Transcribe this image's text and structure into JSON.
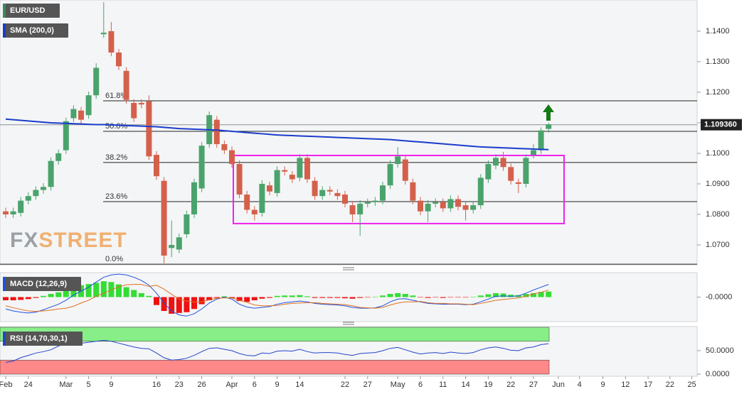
{
  "chart_data": [
    {
      "type": "candlestick",
      "title": "EUR/USD",
      "watermark": [
        "FX",
        "STREET"
      ],
      "up_color": "#4aa36c",
      "down_color": "#d4604c",
      "open": [
        1.081,
        1.08,
        1.0805,
        1.0845,
        1.086,
        1.088,
        1.089,
        1.0975,
        1.101,
        1.1115,
        1.114,
        1.1125,
        1.119,
        1.139,
        1.14,
        1.133,
        1.127,
        1.1165,
        1.1165,
        1.117,
        1.0995,
        1.091,
        1.069,
        1.0685,
        1.0735,
        1.08,
        1.0885,
        1.103,
        1.111,
        1.103,
        1.101,
        1.0965,
        1.0865,
        1.0815,
        1.0805,
        1.0895,
        1.087,
        1.0945,
        1.093,
        1.092,
        1.0985,
        1.091,
        1.086,
        1.088,
        1.087,
        1.0865,
        1.083,
        1.08,
        1.0835,
        1.084,
        1.0845,
        1.0895,
        1.0965,
        1.098,
        1.0905,
        1.0845,
        1.081,
        1.0835,
        1.084,
        1.082,
        1.085,
        1.083,
        1.0815,
        1.083,
        1.0915,
        1.096,
        1.0985,
        1.0955,
        1.0905,
        1.09,
        1.0995,
        1.101,
        1.108
      ],
      "high": [
        1.0822,
        1.0822,
        1.0857,
        1.0872,
        1.0892,
        1.0902,
        1.0987,
        1.1012,
        1.1117,
        1.1157,
        1.1152,
        1.1202,
        1.1295,
        1.1495,
        1.143,
        1.1342,
        1.1282,
        1.1177,
        1.1177,
        1.119,
        1.1007,
        1.0922,
        1.078,
        1.0737,
        1.0812,
        1.0917,
        1.1037,
        1.1137,
        1.1122,
        1.1042,
        1.1022,
        1.0977,
        1.0877,
        1.0827,
        1.0912,
        1.0907,
        1.0957,
        1.0957,
        1.0942,
        1.0997,
        1.0997,
        1.0922,
        1.0892,
        1.0892,
        1.0882,
        1.0877,
        1.0842,
        1.0847,
        1.0852,
        1.0857,
        1.0907,
        1.0977,
        1.102,
        1.0992,
        1.0917,
        1.0857,
        1.0847,
        1.0852,
        1.0852,
        1.0862,
        1.0862,
        1.0842,
        1.0842,
        1.0932,
        1.0977,
        1.0997,
        1.1005,
        1.0967,
        1.0917,
        1.0997,
        1.103,
        1.1085,
        1.11
      ],
      "low": [
        1.0788,
        1.0788,
        1.0793,
        1.0833,
        1.0848,
        1.0868,
        1.0878,
        1.0963,
        1.0998,
        1.1103,
        1.1098,
        1.1113,
        1.1178,
        1.1378,
        1.1318,
        1.1273,
        1.1163,
        1.1103,
        1.1148,
        1.0978,
        1.0913,
        1.064,
        1.066,
        1.0673,
        1.0723,
        1.0788,
        1.0873,
        1.1018,
        1.1018,
        1.0998,
        1.0953,
        1.0853,
        1.0803,
        1.078,
        1.0793,
        1.0863,
        1.0858,
        1.0928,
        1.0903,
        1.0908,
        1.0903,
        1.0848,
        1.0848,
        1.0863,
        1.0848,
        1.0823,
        1.0775,
        1.073,
        1.0823,
        1.0828,
        1.0833,
        1.0883,
        1.0953,
        1.0898,
        1.0833,
        1.0798,
        1.0775,
        1.0823,
        1.0808,
        1.0808,
        1.0813,
        1.078,
        1.0803,
        1.0818,
        1.0903,
        1.0948,
        1.0943,
        1.0898,
        1.087,
        1.0888,
        1.0983,
        1.0998,
        1.1068
      ],
      "close": [
        1.08,
        1.081,
        1.0845,
        1.086,
        1.088,
        1.089,
        1.0975,
        1.1,
        1.1105,
        1.1145,
        1.111,
        1.119,
        1.128,
        1.1395,
        1.133,
        1.1285,
        1.1175,
        1.1115,
        1.116,
        1.099,
        1.0925,
        1.0665,
        1.07,
        1.0725,
        1.08,
        1.0905,
        1.1025,
        1.1125,
        1.103,
        1.101,
        1.0965,
        1.0865,
        1.0815,
        1.08,
        1.09,
        1.0875,
        1.0945,
        1.094,
        1.0915,
        1.0985,
        1.0915,
        1.086,
        1.088,
        1.0875,
        1.086,
        1.0835,
        1.08,
        1.0835,
        1.084,
        1.0845,
        1.0895,
        1.0965,
        1.099,
        1.091,
        1.0845,
        1.081,
        1.0835,
        1.084,
        1.082,
        1.085,
        1.0825,
        1.0815,
        1.083,
        1.092,
        1.0965,
        1.0985,
        1.0955,
        1.091,
        1.09,
        1.0985,
        1.101,
        1.1075,
        1.1095
      ],
      "series": [
        {
          "name": "SMA (200,0)",
          "color": "#1a3ccc",
          "values": [
            1.1112,
            1.111,
            1.1108,
            1.1106,
            1.1104,
            1.1102,
            1.11,
            1.1099,
            1.1098,
            1.1097,
            1.1096,
            1.1095,
            1.1094,
            1.1094,
            1.1093,
            1.1092,
            1.1091,
            1.109,
            1.1089,
            1.1088,
            1.1087,
            1.1085,
            1.1083,
            1.1081,
            1.108,
            1.1079,
            1.1078,
            1.1077,
            1.1076,
            1.1074,
            1.1072,
            1.107,
            1.1068,
            1.1066,
            1.1064,
            1.1062,
            1.106,
            1.1059,
            1.1058,
            1.1057,
            1.1056,
            1.1055,
            1.1054,
            1.1053,
            1.1052,
            1.1051,
            1.105,
            1.1049,
            1.1048,
            1.1047,
            1.1046,
            1.1045,
            1.1043,
            1.1041,
            1.1039,
            1.1037,
            1.1035,
            1.1033,
            1.1031,
            1.1029,
            1.1027,
            1.1025,
            1.1023,
            1.1021,
            1.102,
            1.1019,
            1.1018,
            1.1017,
            1.1016,
            1.1015,
            1.1014,
            1.1013,
            1.1012
          ]
        }
      ],
      "fib_levels": [
        {
          "label": "61.8%",
          "value": 1.1172
        },
        {
          "label": "50.0%",
          "value": 1.1072
        },
        {
          "label": "38.2%",
          "value": 1.097
        },
        {
          "label": "23.6%",
          "value": 1.0842
        },
        {
          "label": "0.0%",
          "value": 1.0637
        }
      ],
      "last_price": {
        "value": 1.10936,
        "label": "1.109360"
      },
      "range_box": [
        1.077,
        1.0993
      ],
      "range_box_color": "#ee22ee",
      "ylim": [
        1.0635,
        1.1502
      ],
      "yticks": [
        {
          "value": 1.14,
          "label": "1.1400"
        },
        {
          "value": 1.13,
          "label": "1.1300"
        },
        {
          "value": 1.12,
          "label": "1.1200"
        },
        {
          "value": 1.11,
          "label": "1.1100"
        },
        {
          "value": 1.1,
          "label": "1.1000"
        },
        {
          "value": 1.09,
          "label": "1.0900"
        },
        {
          "value": 1.08,
          "label": "1.0800"
        },
        {
          "value": 1.07,
          "label": "1.0700"
        }
      ],
      "xticks": [
        {
          "value": 0,
          "label": "Feb"
        },
        {
          "value": 3,
          "label": "24"
        },
        {
          "value": 8,
          "label": "Mar"
        },
        {
          "value": 11,
          "label": "5"
        },
        {
          "value": 14,
          "label": "9"
        },
        {
          "value": 20,
          "label": "16"
        },
        {
          "value": 23,
          "label": "23"
        },
        {
          "value": 26,
          "label": "26"
        },
        {
          "value": 30,
          "label": "Apr"
        },
        {
          "value": 33,
          "label": "6"
        },
        {
          "value": 36,
          "label": "9"
        },
        {
          "value": 39,
          "label": "14"
        },
        {
          "value": 45,
          "label": "22"
        },
        {
          "value": 48,
          "label": "27"
        },
        {
          "value": 52,
          "label": "May"
        },
        {
          "value": 55,
          "label": "6"
        },
        {
          "value": 58,
          "label": "11"
        },
        {
          "value": 61,
          "label": "14"
        },
        {
          "value": 64,
          "label": "19"
        },
        {
          "value": 67,
          "label": "22"
        },
        {
          "value": 70,
          "label": "27"
        },
        {
          "value": 73.3,
          "label": "Jun"
        },
        {
          "value": 76.1,
          "label": "4"
        },
        {
          "value": 79.2,
          "label": "9"
        },
        {
          "value": 82.2,
          "label": "12"
        },
        {
          "value": 85.2,
          "label": "17"
        },
        {
          "value": 88.1,
          "label": "22"
        },
        {
          "value": 91,
          "label": "25"
        }
      ]
    },
    {
      "type": "macd",
      "title": "MACD (12,26,9)",
      "up_color": "#33dd33",
      "down_color": "#ee1111",
      "histogram": [
        -0.0008,
        -0.0008,
        -0.0007,
        -0.0005,
        -0.0002,
        0.0003,
        0.0008,
        0.0012,
        0.002,
        0.0028,
        0.003,
        0.0033,
        0.0036,
        0.004,
        0.0038,
        0.0032,
        0.0025,
        0.0018,
        0.001,
        0.0003,
        -0.002,
        -0.0035,
        -0.0042,
        -0.004,
        -0.0038,
        -0.003,
        -0.0018,
        -0.0008,
        -0.0002,
        0.0002,
        -0.0003,
        -0.001,
        -0.0012,
        -0.0008,
        -0.0004,
        -0.0002,
        0.0003,
        0.0004,
        0.0004,
        0.0005,
        0.0002,
        -0.0002,
        -0.0002,
        -0.0002,
        -0.0002,
        -0.0003,
        -0.0004,
        -0.0002,
        -0.0001,
        0.0001,
        0.0004,
        0.0008,
        0.001,
        0.0008,
        0.0004,
        -0.0001,
        -0.0002,
        -0.0001,
        -0.0002,
        -0.0001,
        -0.0001,
        -0.0001,
        0.0001,
        0.0004,
        0.0007,
        0.001,
        0.0009,
        0.0006,
        0.0005,
        0.0008,
        0.001,
        0.0013,
        0.0014
      ],
      "macd": {
        "color": "#2050e0",
        "values": [
          -0.003,
          -0.0035,
          -0.0038,
          -0.004,
          -0.0038,
          -0.0032,
          -0.0025,
          -0.0018,
          -0.0008,
          0.0005,
          0.0015,
          0.0025,
          0.0038,
          0.005,
          0.0056,
          0.0058,
          0.0056,
          0.005,
          0.0042,
          0.003,
          0.001,
          -0.0015,
          -0.0035,
          -0.0045,
          -0.0048,
          -0.0042,
          -0.003,
          -0.0015,
          -0.0005,
          0.0,
          -0.0005,
          -0.0018,
          -0.0025,
          -0.0028,
          -0.0026,
          -0.0024,
          -0.0018,
          -0.0014,
          -0.0012,
          -0.001,
          -0.0012,
          -0.0016,
          -0.0018,
          -0.0019,
          -0.002,
          -0.0022,
          -0.0026,
          -0.0028,
          -0.0028,
          -0.0027,
          -0.0022,
          -0.0012,
          -0.0005,
          -0.0004,
          -0.0008,
          -0.0012,
          -0.0016,
          -0.0017,
          -0.0018,
          -0.0018,
          -0.0018,
          -0.0019,
          -0.0018,
          -0.0012,
          -0.0005,
          0.0002,
          0.0003,
          0.0002,
          0.0003,
          0.001,
          0.0018,
          0.0025,
          0.0032
        ]
      },
      "signal": {
        "color": "#e07020",
        "values": [
          -0.0022,
          -0.0027,
          -0.0031,
          -0.0035,
          -0.0036,
          -0.0035,
          -0.0033,
          -0.003,
          -0.0028,
          -0.0023,
          -0.0015,
          -0.0008,
          0.0002,
          0.001,
          0.0018,
          0.0026,
          0.0031,
          0.0032,
          0.0032,
          0.0027,
          0.003,
          0.002,
          0.0007,
          -0.0005,
          -0.001,
          -0.0012,
          -0.0012,
          -0.0007,
          -0.0003,
          -0.0002,
          -0.0002,
          -0.0008,
          -0.0013,
          -0.002,
          -0.0022,
          -0.0022,
          -0.0021,
          -0.0018,
          -0.0016,
          -0.0015,
          -0.0014,
          -0.0014,
          -0.0016,
          -0.0017,
          -0.0018,
          -0.0019,
          -0.0022,
          -0.0026,
          -0.0027,
          -0.0028,
          -0.0026,
          -0.002,
          -0.0015,
          -0.0012,
          -0.0012,
          -0.0011,
          -0.0014,
          -0.0016,
          -0.0016,
          -0.0017,
          -0.0017,
          -0.0018,
          -0.0019,
          -0.0016,
          -0.0012,
          -0.0008,
          -0.0006,
          -0.0004,
          -0.0002,
          0.0002,
          0.0008,
          0.0012,
          0.0018
        ]
      },
      "ylim": [
        -0.006,
        0.006
      ],
      "yticks": [
        {
          "value": 0,
          "label": "-0.0000"
        }
      ]
    },
    {
      "type": "rsi",
      "title": "RSI (14,70,30,1)",
      "color": "#2244cc",
      "values": [
        25,
        28,
        35,
        40,
        45,
        48,
        52,
        60,
        65,
        68,
        66,
        68,
        70,
        72,
        70,
        66,
        62,
        58,
        55,
        54,
        45,
        35,
        30,
        31,
        34,
        40,
        48,
        55,
        56,
        53,
        50,
        44,
        40,
        39,
        45,
        44,
        49,
        50,
        49,
        53,
        48,
        45,
        46,
        46,
        45,
        42,
        40,
        44,
        45,
        46,
        50,
        55,
        57,
        52,
        47,
        43,
        45,
        46,
        44,
        47,
        45,
        44,
        46,
        52,
        56,
        58,
        55,
        51,
        50,
        56,
        58,
        63,
        65
      ],
      "zones": [
        {
          "from": 70,
          "to": 100,
          "color": "#88ee88"
        },
        {
          "from": 0,
          "to": 30,
          "color": "#ff8888"
        }
      ],
      "ylim": [
        0,
        100
      ],
      "yticks": [
        {
          "value": 50,
          "label": "50.0000"
        },
        {
          "value": 0,
          "label": "0.0000"
        }
      ]
    }
  ]
}
